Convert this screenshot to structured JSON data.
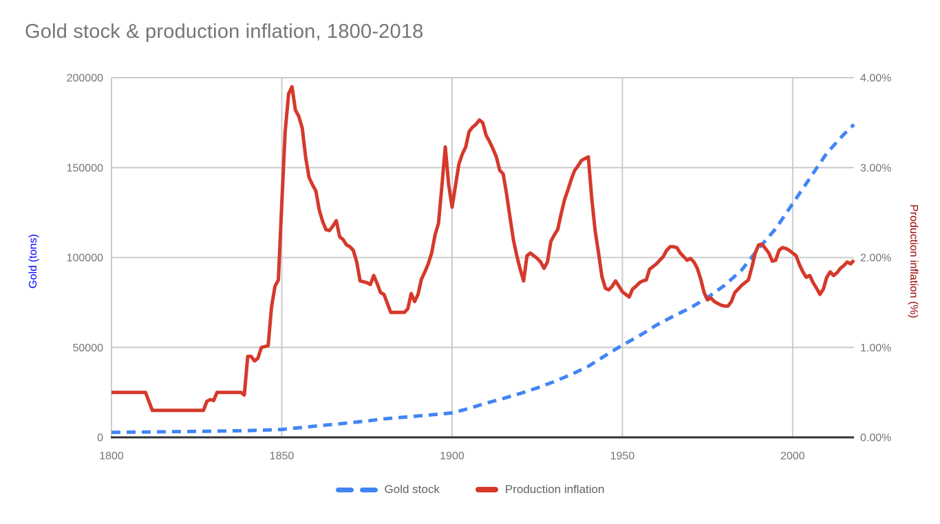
{
  "title": "Gold stock & production inflation, 1800-2018",
  "legend": {
    "series1": "Gold stock",
    "series2": "Production inflation"
  },
  "axes": {
    "left": {
      "title": "Gold (tons)",
      "color": "#0000ff",
      "tick_labels": [
        "0",
        "50000",
        "100000",
        "150000",
        "200000"
      ]
    },
    "right": {
      "title": "Production inflation (%)",
      "color": "#990000",
      "tick_labels": [
        "0.00%",
        "1.00%",
        "2.00%",
        "3.00%",
        "4.00%"
      ]
    },
    "x": {
      "tick_labels": [
        "1800",
        "1850",
        "1900",
        "1950",
        "2000"
      ]
    }
  },
  "colors": {
    "gold_stock": "#4285f4",
    "production_inflation": "#d5392b",
    "grid": "#cccccc",
    "axis_line": "#333333",
    "tick_label": "#757575",
    "title_text": "#757575",
    "legend_text": "#5f6368",
    "left_axis_title": "#0000ff",
    "right_axis_title": "#990000"
  },
  "chart_data": {
    "type": "line",
    "title": "Gold stock & production inflation, 1800-2018",
    "grid": true,
    "legend_position": "bottom",
    "x_axis": {
      "range": [
        1800,
        2018
      ],
      "ticks": [
        1800,
        1850,
        1900,
        1950,
        2000
      ]
    },
    "y_left": {
      "label": "Gold (tons)",
      "range": [
        0,
        200000
      ],
      "ticks": [
        0,
        50000,
        100000,
        150000,
        200000
      ]
    },
    "y_right": {
      "label": "Production inflation (%)",
      "range": [
        0,
        4
      ],
      "ticks": [
        0,
        1,
        2,
        3,
        4
      ]
    },
    "series": [
      {
        "name": "Gold stock",
        "axis": "left",
        "style": "dashed",
        "color": "#4285f4",
        "points": [
          [
            1800,
            2800
          ],
          [
            1810,
            3000
          ],
          [
            1820,
            3200
          ],
          [
            1830,
            3450
          ],
          [
            1840,
            3750
          ],
          [
            1850,
            4400
          ],
          [
            1855,
            5300
          ],
          [
            1860,
            6300
          ],
          [
            1865,
            7200
          ],
          [
            1870,
            8100
          ],
          [
            1875,
            9100
          ],
          [
            1880,
            10300
          ],
          [
            1885,
            11100
          ],
          [
            1890,
            11900
          ],
          [
            1895,
            12700
          ],
          [
            1900,
            13600
          ],
          [
            1905,
            16100
          ],
          [
            1910,
            19000
          ],
          [
            1915,
            21600
          ],
          [
            1920,
            24400
          ],
          [
            1925,
            27500
          ],
          [
            1930,
            31000
          ],
          [
            1935,
            35000
          ],
          [
            1940,
            39500
          ],
          [
            1945,
            45500
          ],
          [
            1950,
            51300
          ],
          [
            1955,
            56500
          ],
          [
            1960,
            62400
          ],
          [
            1965,
            67400
          ],
          [
            1970,
            72000
          ],
          [
            1975,
            77800
          ],
          [
            1980,
            84500
          ],
          [
            1985,
            93000
          ],
          [
            1990,
            105000
          ],
          [
            1995,
            116000
          ],
          [
            2000,
            130000
          ],
          [
            2005,
            144000
          ],
          [
            2010,
            158000
          ],
          [
            2015,
            168500
          ],
          [
            2018,
            174000
          ]
        ]
      },
      {
        "name": "Production inflation",
        "axis": "right",
        "style": "solid",
        "color": "#d5392b",
        "points": [
          [
            1800,
            0.5
          ],
          [
            1810,
            0.5
          ],
          [
            1811,
            0.4
          ],
          [
            1812,
            0.3
          ],
          [
            1827,
            0.3
          ],
          [
            1828,
            0.4
          ],
          [
            1829,
            0.42
          ],
          [
            1830,
            0.41
          ],
          [
            1831,
            0.5
          ],
          [
            1838,
            0.5
          ],
          [
            1839,
            0.47
          ],
          [
            1840,
            0.9
          ],
          [
            1841,
            0.9
          ],
          [
            1842,
            0.85
          ],
          [
            1843,
            0.88
          ],
          [
            1844,
            1.0
          ],
          [
            1846,
            1.02
          ],
          [
            1847,
            1.45
          ],
          [
            1848,
            1.68
          ],
          [
            1849,
            1.75
          ],
          [
            1850,
            2.6
          ],
          [
            1851,
            3.4
          ],
          [
            1852,
            3.82
          ],
          [
            1853,
            3.9
          ],
          [
            1854,
            3.64
          ],
          [
            1855,
            3.57
          ],
          [
            1856,
            3.44
          ],
          [
            1857,
            3.12
          ],
          [
            1858,
            2.89
          ],
          [
            1859,
            2.81
          ],
          [
            1860,
            2.74
          ],
          [
            1861,
            2.53
          ],
          [
            1862,
            2.4
          ],
          [
            1863,
            2.31
          ],
          [
            1864,
            2.3
          ],
          [
            1865,
            2.35
          ],
          [
            1866,
            2.41
          ],
          [
            1867,
            2.23
          ],
          [
            1868,
            2.2
          ],
          [
            1869,
            2.14
          ],
          [
            1870,
            2.12
          ],
          [
            1871,
            2.08
          ],
          [
            1872,
            1.95
          ],
          [
            1873,
            1.74
          ],
          [
            1875,
            1.72
          ],
          [
            1876,
            1.7
          ],
          [
            1877,
            1.8
          ],
          [
            1878,
            1.71
          ],
          [
            1879,
            1.61
          ],
          [
            1880,
            1.59
          ],
          [
            1881,
            1.49
          ],
          [
            1882,
            1.39
          ],
          [
            1886,
            1.39
          ],
          [
            1887,
            1.43
          ],
          [
            1888,
            1.6
          ],
          [
            1889,
            1.51
          ],
          [
            1890,
            1.59
          ],
          [
            1891,
            1.76
          ],
          [
            1892,
            1.84
          ],
          [
            1893,
            1.93
          ],
          [
            1894,
            2.05
          ],
          [
            1895,
            2.25
          ],
          [
            1896,
            2.38
          ],
          [
            1897,
            2.79
          ],
          [
            1898,
            3.23
          ],
          [
            1899,
            2.81
          ],
          [
            1900,
            2.56
          ],
          [
            1901,
            2.8
          ],
          [
            1902,
            3.04
          ],
          [
            1903,
            3.15
          ],
          [
            1904,
            3.23
          ],
          [
            1905,
            3.4
          ],
          [
            1906,
            3.45
          ],
          [
            1907,
            3.48
          ],
          [
            1908,
            3.53
          ],
          [
            1909,
            3.5
          ],
          [
            1910,
            3.36
          ],
          [
            1911,
            3.29
          ],
          [
            1912,
            3.21
          ],
          [
            1913,
            3.12
          ],
          [
            1914,
            2.97
          ],
          [
            1915,
            2.93
          ],
          [
            1916,
            2.71
          ],
          [
            1917,
            2.45
          ],
          [
            1918,
            2.2
          ],
          [
            1919,
            2.02
          ],
          [
            1920,
            1.87
          ],
          [
            1921,
            1.74
          ],
          [
            1922,
            2.02
          ],
          [
            1923,
            2.05
          ],
          [
            1925,
            1.99
          ],
          [
            1926,
            1.95
          ],
          [
            1927,
            1.88
          ],
          [
            1928,
            1.95
          ],
          [
            1929,
            2.18
          ],
          [
            1930,
            2.25
          ],
          [
            1931,
            2.31
          ],
          [
            1932,
            2.48
          ],
          [
            1933,
            2.64
          ],
          [
            1934,
            2.75
          ],
          [
            1935,
            2.87
          ],
          [
            1936,
            2.97
          ],
          [
            1937,
            3.02
          ],
          [
            1938,
            3.08
          ],
          [
            1940,
            3.12
          ],
          [
            1941,
            2.66
          ],
          [
            1942,
            2.3
          ],
          [
            1943,
            2.05
          ],
          [
            1944,
            1.79
          ],
          [
            1945,
            1.66
          ],
          [
            1946,
            1.64
          ],
          [
            1947,
            1.68
          ],
          [
            1948,
            1.74
          ],
          [
            1949,
            1.68
          ],
          [
            1950,
            1.62
          ],
          [
            1951,
            1.59
          ],
          [
            1952,
            1.56
          ],
          [
            1953,
            1.65
          ],
          [
            1954,
            1.68
          ],
          [
            1955,
            1.72
          ],
          [
            1956,
            1.74
          ],
          [
            1957,
            1.75
          ],
          [
            1958,
            1.87
          ],
          [
            1959,
            1.9
          ],
          [
            1960,
            1.93
          ],
          [
            1961,
            1.97
          ],
          [
            1962,
            2.01
          ],
          [
            1963,
            2.08
          ],
          [
            1964,
            2.12
          ],
          [
            1965,
            2.12
          ],
          [
            1966,
            2.11
          ],
          [
            1967,
            2.05
          ],
          [
            1968,
            2.01
          ],
          [
            1969,
            1.97
          ],
          [
            1970,
            1.99
          ],
          [
            1971,
            1.95
          ],
          [
            1972,
            1.88
          ],
          [
            1973,
            1.76
          ],
          [
            1974,
            1.61
          ],
          [
            1975,
            1.53
          ],
          [
            1976,
            1.55
          ],
          [
            1977,
            1.51
          ],
          [
            1978,
            1.49
          ],
          [
            1979,
            1.47
          ],
          [
            1980,
            1.46
          ],
          [
            1981,
            1.46
          ],
          [
            1982,
            1.51
          ],
          [
            1983,
            1.61
          ],
          [
            1984,
            1.65
          ],
          [
            1985,
            1.69
          ],
          [
            1986,
            1.72
          ],
          [
            1987,
            1.75
          ],
          [
            1988,
            1.89
          ],
          [
            1989,
            2.05
          ],
          [
            1990,
            2.14
          ],
          [
            1991,
            2.15
          ],
          [
            1992,
            2.1
          ],
          [
            1993,
            2.05
          ],
          [
            1994,
            1.96
          ],
          [
            1995,
            1.97
          ],
          [
            1996,
            2.08
          ],
          [
            1997,
            2.11
          ],
          [
            1998,
            2.1
          ],
          [
            1999,
            2.08
          ],
          [
            2000,
            2.05
          ],
          [
            2001,
            2.02
          ],
          [
            2002,
            1.92
          ],
          [
            2003,
            1.84
          ],
          [
            2004,
            1.78
          ],
          [
            2005,
            1.8
          ],
          [
            2006,
            1.72
          ],
          [
            2007,
            1.66
          ],
          [
            2008,
            1.59
          ],
          [
            2009,
            1.65
          ],
          [
            2010,
            1.78
          ],
          [
            2011,
            1.84
          ],
          [
            2012,
            1.8
          ],
          [
            2013,
            1.83
          ],
          [
            2014,
            1.88
          ],
          [
            2015,
            1.91
          ],
          [
            2016,
            1.95
          ],
          [
            2017,
            1.93
          ],
          [
            2018,
            1.97
          ]
        ]
      }
    ]
  }
}
